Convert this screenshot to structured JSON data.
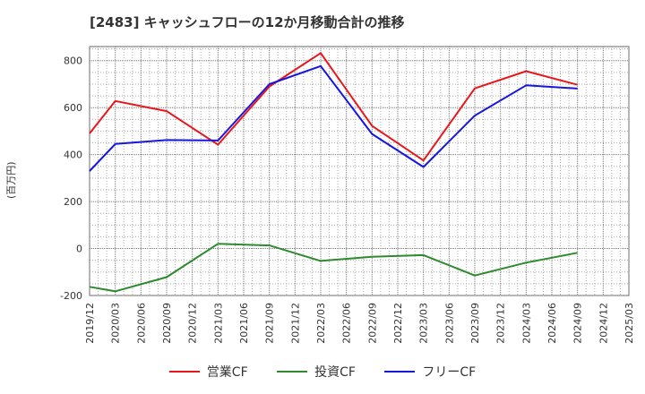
{
  "chart_data": {
    "type": "line",
    "title": "[2483]  キャッシュフローの12か月移動合計の推移",
    "ylabel": "(百万円)",
    "xlabel": "",
    "ylim": [
      -200,
      860
    ],
    "yticks": [
      -200,
      0,
      200,
      400,
      600,
      800
    ],
    "grid": true,
    "legend_position": "bottom",
    "categories": [
      "2019/12",
      "2020/03",
      "2020/06",
      "2020/09",
      "2020/12",
      "2021/03",
      "2021/06",
      "2021/09",
      "2021/12",
      "2022/03",
      "2022/06",
      "2022/09",
      "2022/12",
      "2023/03",
      "2023/06",
      "2023/09",
      "2023/12",
      "2024/03",
      "2024/06",
      "2024/09",
      "2024/12",
      "2025/03"
    ],
    "series": [
      {
        "name": "営業CF",
        "color": "#e8161b",
        "values": [
          490,
          628,
          null,
          585,
          null,
          442,
          null,
          690,
          null,
          832,
          null,
          522,
          null,
          375,
          null,
          682,
          null,
          755,
          null,
          697,
          null,
          null
        ]
      },
      {
        "name": "投資CF",
        "color": "#2d8a2d",
        "values": [
          -163,
          -182,
          null,
          -122,
          null,
          20,
          null,
          13,
          null,
          -53,
          null,
          -35,
          null,
          -28,
          null,
          -115,
          null,
          -60,
          null,
          -18,
          null,
          null
        ]
      },
      {
        "name": "フリーCF",
        "color": "#1616e0",
        "values": [
          330,
          445,
          null,
          462,
          null,
          460,
          null,
          700,
          null,
          777,
          null,
          488,
          null,
          347,
          null,
          566,
          null,
          695,
          null,
          681,
          null,
          null
        ]
      }
    ]
  }
}
